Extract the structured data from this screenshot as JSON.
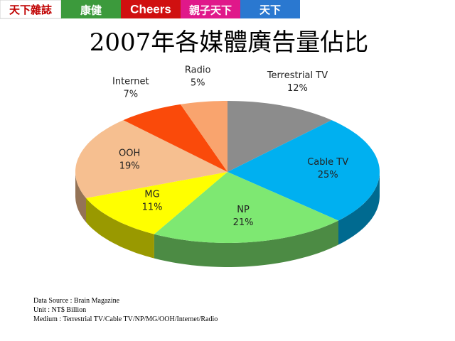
{
  "header": {
    "logos": [
      "天下雜誌",
      "康健",
      "Cheers",
      "親子天下",
      "天下"
    ]
  },
  "chart_data": {
    "type": "pie",
    "title": "2007年各媒體廣告量佔比",
    "categories": [
      "Terrestrial TV",
      "Cable TV",
      "NP",
      "MG",
      "OOH",
      "Internet",
      "Radio"
    ],
    "values": [
      12,
      25,
      21,
      11,
      19,
      7,
      5
    ],
    "value_labels": [
      "12%",
      "25%",
      "21%",
      "11%",
      "19%",
      "7%",
      "5%"
    ],
    "colors": [
      "#8c8c8c",
      "#00b0f0",
      "#7ee872",
      "#ffff00",
      "#f6bf90",
      "#fa4a0a",
      "#f9a46e"
    ]
  },
  "notes": [
    "Data Source : Brain Magazine",
    "Unit : NT$ Billion",
    "Medium : Terrestrial TV/Cable TV/NP/MG/OOH/Internet/Radio"
  ]
}
